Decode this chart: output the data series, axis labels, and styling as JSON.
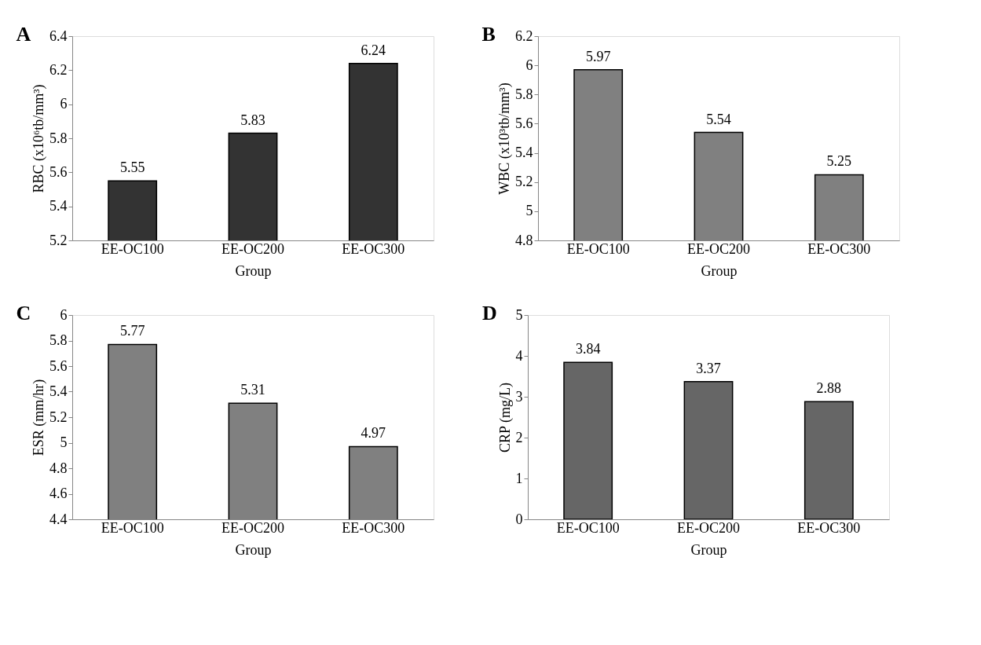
{
  "chart_data": [
    {
      "type": "bar",
      "title": "A",
      "categories": [
        "EE-OC100",
        "EE-OC200",
        "EE-OC300"
      ],
      "values": [
        5.55,
        5.83,
        6.24
      ],
      "color": "#333333",
      "ylim": [
        5.2,
        6.4
      ],
      "yticks": [
        5.2,
        5.4,
        5.6,
        5.8,
        6,
        6.2,
        6.4
      ],
      "ylabel": "RBC (x10⁶tb/mm³)",
      "xlabel": "Group",
      "data_labels": true,
      "grid": false
    },
    {
      "type": "bar",
      "title": "B",
      "categories": [
        "EE-OC100",
        "EE-OC200",
        "EE-OC300"
      ],
      "values": [
        5.97,
        5.54,
        5.25
      ],
      "color": "#808080",
      "ylim": [
        4.8,
        6.2
      ],
      "yticks": [
        4.8,
        5,
        5.2,
        5.4,
        5.6,
        5.8,
        6,
        6.2
      ],
      "ylabel": "WBC (x10³tb/mm³)",
      "xlabel": "Group",
      "data_labels": true,
      "grid": false
    },
    {
      "type": "bar",
      "title": "C",
      "categories": [
        "EE-OC100",
        "EE-OC200",
        "EE-OC300"
      ],
      "values": [
        5.77,
        5.31,
        4.97
      ],
      "color": "#808080",
      "ylim": [
        4.4,
        6
      ],
      "yticks": [
        4.4,
        4.6,
        4.8,
        5,
        5.2,
        5.4,
        5.6,
        5.8,
        6
      ],
      "ylabel": "ESR (mm/hr)",
      "xlabel": "Group",
      "data_labels": true,
      "grid": false
    },
    {
      "type": "bar",
      "title": "D",
      "categories": [
        "EE-OC100",
        "EE-OC200",
        "EE-OC300"
      ],
      "values": [
        3.84,
        3.37,
        2.88
      ],
      "color": "#666666",
      "ylim": [
        0,
        5
      ],
      "yticks": [
        0,
        1,
        2,
        3,
        4,
        5
      ],
      "ylabel": "CRP (mg/L)",
      "xlabel": "Group",
      "data_labels": true,
      "grid": false
    }
  ]
}
